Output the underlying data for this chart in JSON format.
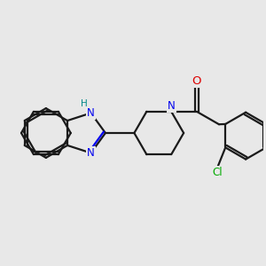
{
  "bg_color": "#e8e8e8",
  "bond_color": "#1a1a1a",
  "n_color": "#0000ee",
  "o_color": "#dd0000",
  "cl_color": "#00aa00",
  "h_color": "#008888",
  "line_width": 1.6,
  "figsize": [
    3.0,
    3.0
  ],
  "dpi": 100,
  "xlim": [
    -4.2,
    4.2
  ],
  "ylim": [
    -3.0,
    3.0
  ]
}
